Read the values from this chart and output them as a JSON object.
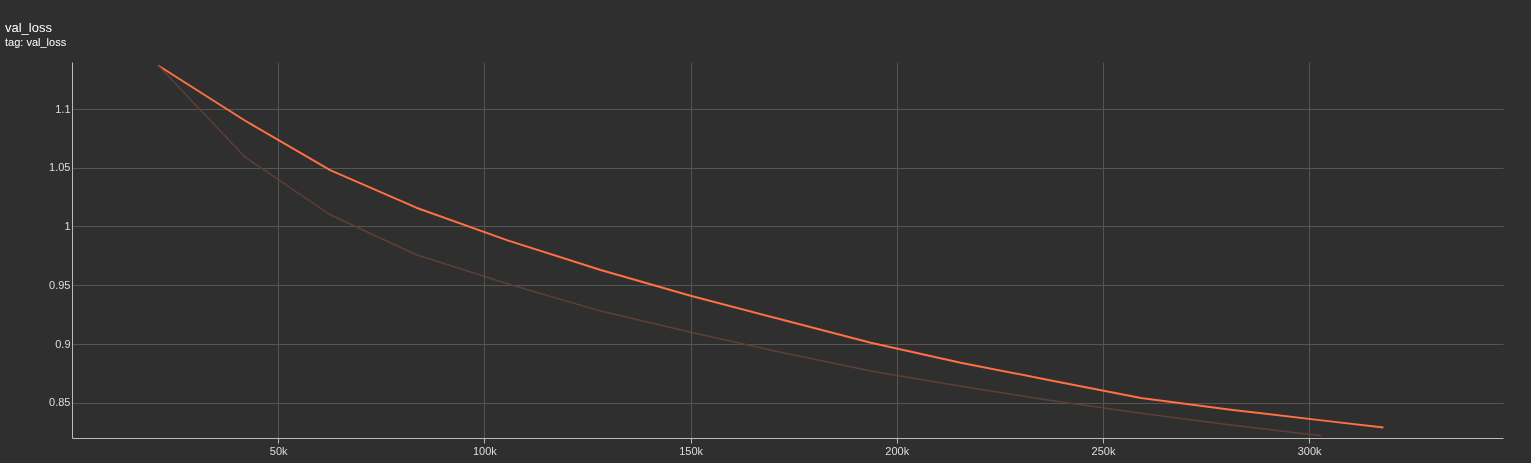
{
  "chart_data": {
    "type": "line",
    "title": "val_loss",
    "subtitle": "tag: val_loss",
    "x": [
      20900,
      42000,
      62600,
      83500,
      105800,
      128200,
      150000,
      171800,
      193700,
      215500,
      237400,
      259200,
      281000,
      303000,
      318000
    ],
    "series": [
      {
        "color": "#ff7043",
        "values": [
          1.137,
          1.09,
          1.048,
          1.016,
          0.988,
          0.963,
          0.941,
          0.921,
          0.901,
          0.884,
          0.869,
          0.854,
          0.844,
          0.835,
          0.829
        ]
      },
      {
        "color": "#5e4036",
        "values": [
          1.137,
          1.059,
          1.01,
          0.976,
          0.951,
          0.928,
          0.91,
          0.893,
          0.877,
          0.864,
          0.852,
          0.841,
          0.831,
          0.822,
          null
        ]
      }
    ],
    "xlim": [
      0,
      347000
    ],
    "ylim": [
      0.82,
      1.14
    ],
    "xticks": [
      {
        "value": 50000,
        "label": "50k"
      },
      {
        "value": 100000,
        "label": "100k"
      },
      {
        "value": 150000,
        "label": "150k"
      },
      {
        "value": 200000,
        "label": "200k"
      },
      {
        "value": 250000,
        "label": "250k"
      },
      {
        "value": 300000,
        "label": "300k"
      }
    ],
    "yticks": [
      0.85,
      0.9,
      0.95,
      1,
      1.05,
      1.1
    ],
    "grid": true
  }
}
